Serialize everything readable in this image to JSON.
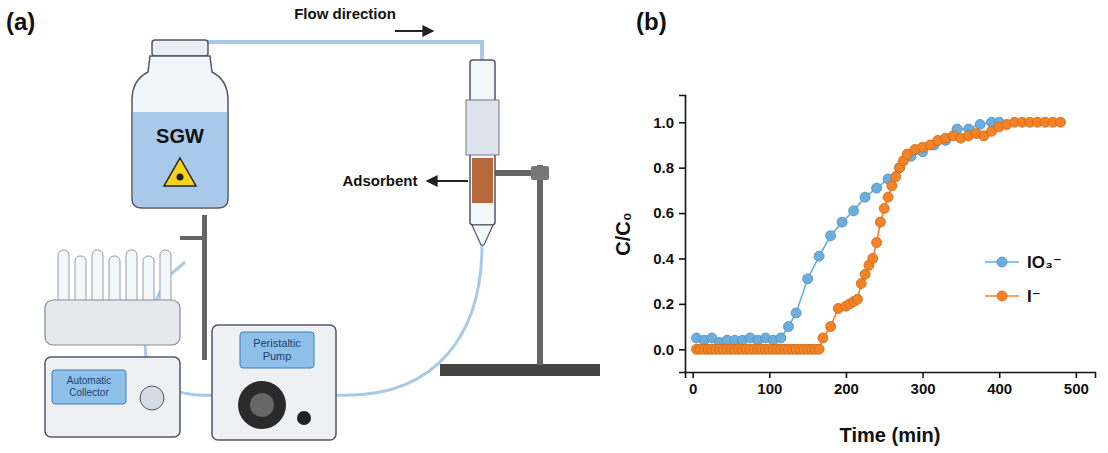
{
  "panel_labels": [
    "(a)",
    "(b)"
  ],
  "diagram": {
    "flow_label": "Flow direction",
    "reservoir_label": "SGW",
    "adsorbent_label": "Adsorbent",
    "pump_label": "Peristaltic Pump",
    "collector_label": "Automatic Collector"
  },
  "chart_data": {
    "type": "line",
    "x_label": "Time (min)",
    "y_label": "C/C₀",
    "xlim": [
      -10,
      525
    ],
    "ylim": [
      -0.1,
      1.12
    ],
    "xticks": [
      0,
      100,
      200,
      300,
      400,
      500
    ],
    "yticks": [
      {
        "value": 0,
        "label": "0.0"
      },
      {
        "value": 0.2,
        "label": "0.2"
      },
      {
        "value": 0.4,
        "label": "0.4"
      },
      {
        "value": 0.6,
        "label": "0.6"
      },
      {
        "value": 0.8,
        "label": "0.8"
      },
      {
        "value": 1,
        "label": "1.0"
      }
    ],
    "grid": false,
    "legend": "lower right",
    "series": [
      {
        "name": "IO₃⁻",
        "color": "#6aaee0",
        "marker": "circle",
        "line_style": "solid",
        "x": [
          5,
          15,
          25,
          35,
          45,
          55,
          65,
          75,
          85,
          95,
          105,
          115,
          125,
          135,
          150,
          165,
          180,
          195,
          210,
          225,
          240,
          255,
          270,
          285,
          300,
          315,
          330,
          345,
          360,
          375,
          390,
          400
        ],
        "values": [
          0.05,
          0.04,
          0.05,
          0.03,
          0.04,
          0.04,
          0.04,
          0.05,
          0.04,
          0.05,
          0.04,
          0.05,
          0.1,
          0.16,
          0.31,
          0.41,
          0.5,
          0.56,
          0.61,
          0.67,
          0.71,
          0.75,
          0.8,
          0.85,
          0.87,
          0.9,
          0.92,
          0.97,
          0.97,
          0.99,
          1.0,
          1.0
        ]
      },
      {
        "name": "I⁻",
        "color": "#f58224",
        "marker": "circle",
        "line_style": "solid",
        "x": [
          5,
          10,
          15,
          20,
          25,
          30,
          35,
          40,
          45,
          50,
          55,
          60,
          65,
          70,
          75,
          80,
          85,
          90,
          95,
          100,
          105,
          110,
          115,
          120,
          125,
          130,
          135,
          140,
          145,
          150,
          155,
          160,
          165,
          170,
          180,
          190,
          200,
          205,
          210,
          215,
          220,
          225,
          230,
          235,
          240,
          245,
          250,
          255,
          260,
          265,
          270,
          275,
          280,
          290,
          300,
          310,
          320,
          330,
          340,
          350,
          360,
          370,
          380,
          390,
          400,
          410,
          420,
          430,
          440,
          450,
          460,
          470,
          480
        ],
        "values": [
          0,
          0,
          0,
          0,
          0,
          0,
          0,
          0,
          0,
          0,
          0,
          0,
          0,
          0,
          0,
          0,
          0,
          0,
          0,
          0,
          0,
          0,
          0,
          0,
          0,
          0,
          0,
          0,
          0,
          0,
          0,
          0,
          0,
          0.05,
          0.1,
          0.18,
          0.19,
          0.2,
          0.21,
          0.22,
          0.29,
          0.33,
          0.37,
          0.4,
          0.47,
          0.56,
          0.62,
          0.67,
          0.72,
          0.76,
          0.8,
          0.83,
          0.86,
          0.88,
          0.89,
          0.9,
          0.92,
          0.93,
          0.94,
          0.93,
          0.94,
          0.95,
          0.94,
          0.96,
          0.98,
          0.99,
          1.0,
          1.0,
          1.0,
          1.0,
          1.0,
          1.0,
          1.0
        ]
      }
    ]
  }
}
